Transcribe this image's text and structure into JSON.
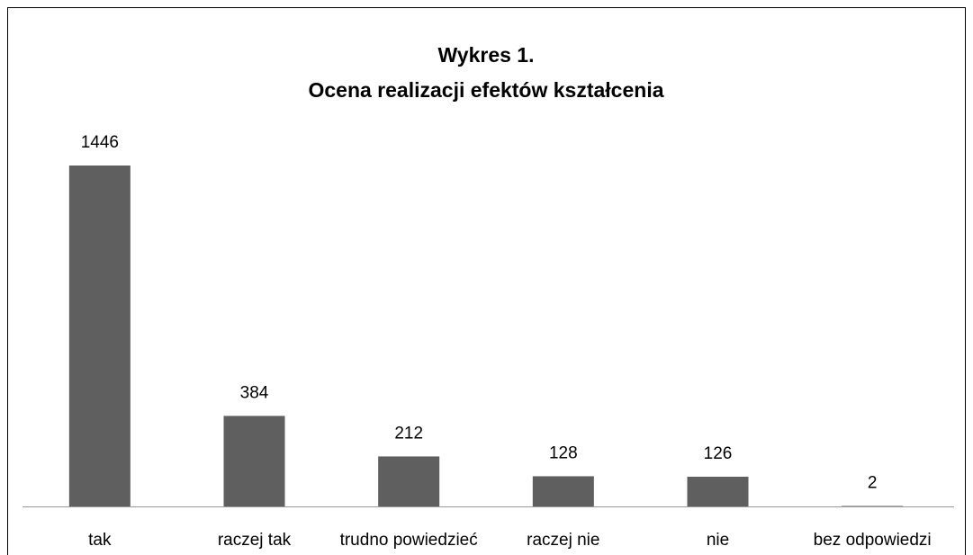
{
  "chart_data": {
    "type": "bar",
    "title": "Wykres 1.",
    "subtitle": "Ocena realizacji efektów kształcenia",
    "categories": [
      "tak",
      "raczej tak",
      "trudno powiedzieć",
      "raczej nie",
      "nie",
      "bez odpowiedzi"
    ],
    "values": [
      1446,
      384,
      212,
      128,
      126,
      2
    ],
    "color": "#5f5f5f"
  }
}
